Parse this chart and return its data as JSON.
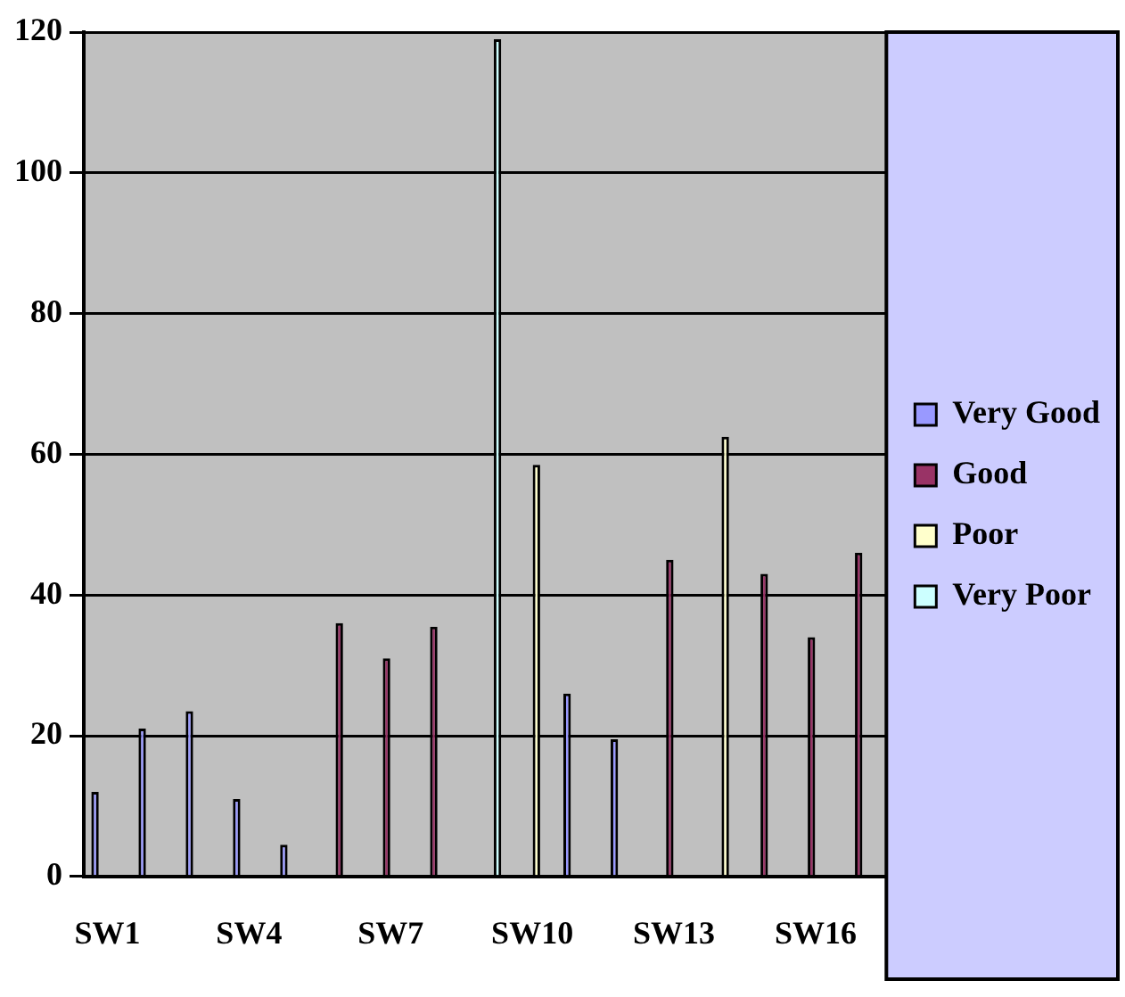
{
  "chart_data": {
    "type": "bar",
    "categories": [
      "SW1",
      null,
      null,
      "SW4",
      null,
      null,
      "SW7",
      null,
      null,
      "SW10",
      null,
      null,
      "SW13",
      null,
      null,
      "SW16",
      null
    ],
    "series": [
      {
        "name": "Very Good",
        "color": "#9999ff",
        "values": [
          12,
          21,
          23.5,
          11,
          4.5,
          null,
          null,
          null,
          null,
          null,
          26,
          19.5,
          null,
          null,
          null,
          null,
          null
        ]
      },
      {
        "name": "Good",
        "color": "#993366",
        "values": [
          null,
          null,
          null,
          null,
          null,
          36,
          31,
          35.5,
          null,
          null,
          null,
          null,
          45,
          null,
          43,
          34,
          46
        ]
      },
      {
        "name": "Poor",
        "color": "#ffffcc",
        "values": [
          null,
          null,
          null,
          null,
          null,
          null,
          null,
          null,
          null,
          58.5,
          null,
          null,
          null,
          62.5,
          null,
          null,
          null
        ]
      },
      {
        "name": "Very Poor",
        "color": "#ccffff",
        "values": [
          null,
          null,
          null,
          null,
          null,
          null,
          null,
          null,
          119,
          null,
          null,
          null,
          null,
          null,
          null,
          null,
          null
        ]
      }
    ],
    "ylim": [
      0,
      120
    ],
    "yticks": [
      0,
      20,
      40,
      60,
      80,
      100,
      120
    ],
    "grid": "y",
    "legend": "right"
  }
}
